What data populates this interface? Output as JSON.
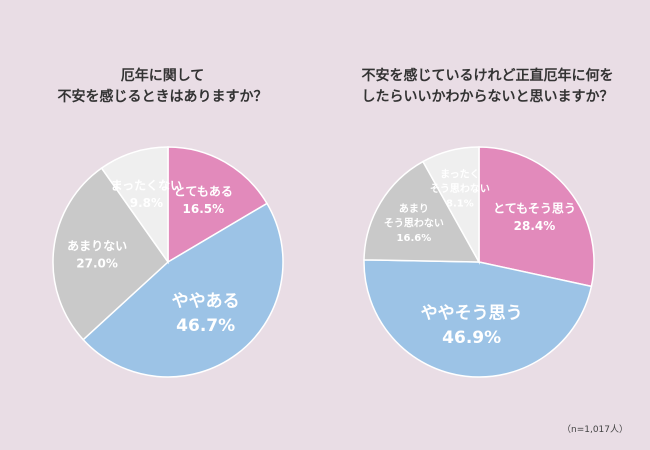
{
  "note": "（n=1,017人）",
  "chart_data": [
    {
      "type": "pie",
      "title": [
        "厄年に関して",
        "不安を感じるときはありますか？"
      ],
      "slices": [
        {
          "label": [
            "とてもある"
          ],
          "value": 16.5,
          "value_label": "16.5%",
          "color": "#e28abb",
          "size": "mid"
        },
        {
          "label": [
            "ややある"
          ],
          "value": 46.7,
          "value_label": "46.7%",
          "color": "#9cc3e6",
          "size": "big"
        },
        {
          "label": [
            "あまりない"
          ],
          "value": 27.0,
          "value_label": "27.0%",
          "color": "#c9c9c9",
          "size": "mid"
        },
        {
          "label": [
            "まったくない"
          ],
          "value": 9.8,
          "value_label": "9.8%",
          "color": "#efefef",
          "size": "mid"
        }
      ]
    },
    {
      "type": "pie",
      "title": [
        "不安を感じているけれど正直厄年に何を",
        "したらいいかわからないと思いますか？"
      ],
      "slices": [
        {
          "label": [
            "とてもそう思う"
          ],
          "value": 28.4,
          "value_label": "28.4%",
          "color": "#e28abb",
          "size": "mid"
        },
        {
          "label": [
            "ややそう思う"
          ],
          "value": 46.9,
          "value_label": "46.9%",
          "color": "#9cc3e6",
          "size": "big"
        },
        {
          "label": [
            "あまり",
            "そう思わない"
          ],
          "value": 16.6,
          "value_label": "16.6%",
          "color": "#c9c9c9",
          "size": "small"
        },
        {
          "label": [
            "まったく",
            "そう思わない"
          ],
          "value": 8.1,
          "value_label": "8.1%",
          "color": "#efefef",
          "size": "small"
        }
      ]
    }
  ]
}
